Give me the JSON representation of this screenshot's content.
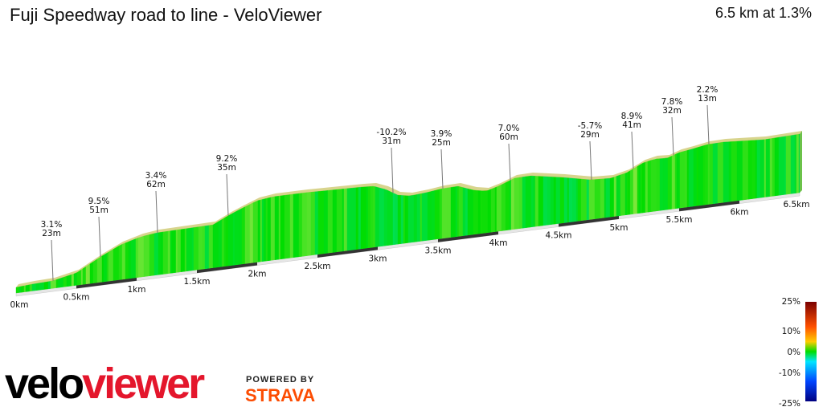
{
  "header": {
    "title": "Fuji Speedway road to line - VeloViewer",
    "summary": "6.5 km at 1.3%"
  },
  "chart_data": {
    "type": "area",
    "title": "Fuji Speedway road to line - VeloViewer",
    "distance_km": 6.5,
    "avg_gradient_pct": 1.3,
    "x_ticks": [
      "0km",
      "0.5km",
      "1km",
      "1.5km",
      "2km",
      "2.5km",
      "3km",
      "3.5km",
      "4km",
      "4.5km",
      "5km",
      "5.5km",
      "6km",
      "6.5km"
    ],
    "segments": [
      {
        "gradient": "3.1%",
        "length": "23m"
      },
      {
        "gradient": "9.5%",
        "length": "51m"
      },
      {
        "gradient": "3.4%",
        "length": "62m"
      },
      {
        "gradient": "9.2%",
        "length": "35m"
      },
      {
        "gradient": "-10.2%",
        "length": "31m"
      },
      {
        "gradient": "3.9%",
        "length": "25m"
      },
      {
        "gradient": "7.0%",
        "length": "60m"
      },
      {
        "gradient": "-5.7%",
        "length": "29m"
      },
      {
        "gradient": "8.9%",
        "length": "41m"
      },
      {
        "gradient": "7.8%",
        "length": "32m"
      },
      {
        "gradient": "2.2%",
        "length": "13m"
      }
    ],
    "color_scale": {
      "labels": [
        "25%",
        "10%",
        "0%",
        "-10%",
        "-25%"
      ],
      "colors": [
        "#7a0000",
        "#ff7f00",
        "#ffff00",
        "#00dd00",
        "#00e5ff",
        "#0044ff",
        "#000080"
      ]
    }
  },
  "branding": {
    "logo_part1": "velo",
    "logo_part2": "viewer",
    "powered_by": "POWERED BY",
    "strava": "STRAVA"
  }
}
